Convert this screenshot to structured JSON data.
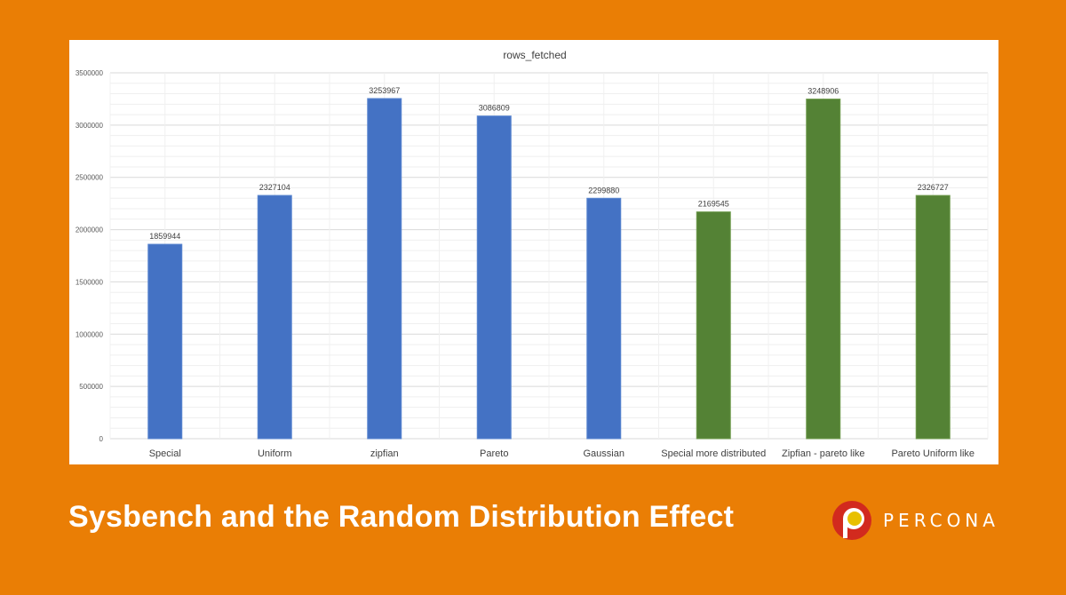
{
  "chart_data": {
    "type": "bar",
    "title": "rows_fetched",
    "categories": [
      "Special",
      "Uniform",
      "zipfian",
      "Pareto",
      "Gaussian",
      "Special more distributed",
      "Zipfian - pareto like",
      "Pareto Uniform like"
    ],
    "values": [
      1859944,
      2327104,
      3253967,
      3086809,
      2299880,
      2169545,
      3248906,
      2326727
    ],
    "bar_colors": [
      "#4472c4",
      "#4472c4",
      "#4472c4",
      "#4472c4",
      "#4472c4",
      "#548235",
      "#548235",
      "#548235"
    ],
    "ylim": [
      0,
      3500000
    ],
    "yticks": [
      0,
      500000,
      1000000,
      1500000,
      2000000,
      2500000,
      3000000,
      3500000
    ],
    "grid": true,
    "data_labels": true,
    "xlabel": "",
    "ylabel": ""
  },
  "banner": {
    "title": "Sysbench and the Random Distribution Effect",
    "brand": "PERCONA",
    "background": "#ea7e05"
  }
}
